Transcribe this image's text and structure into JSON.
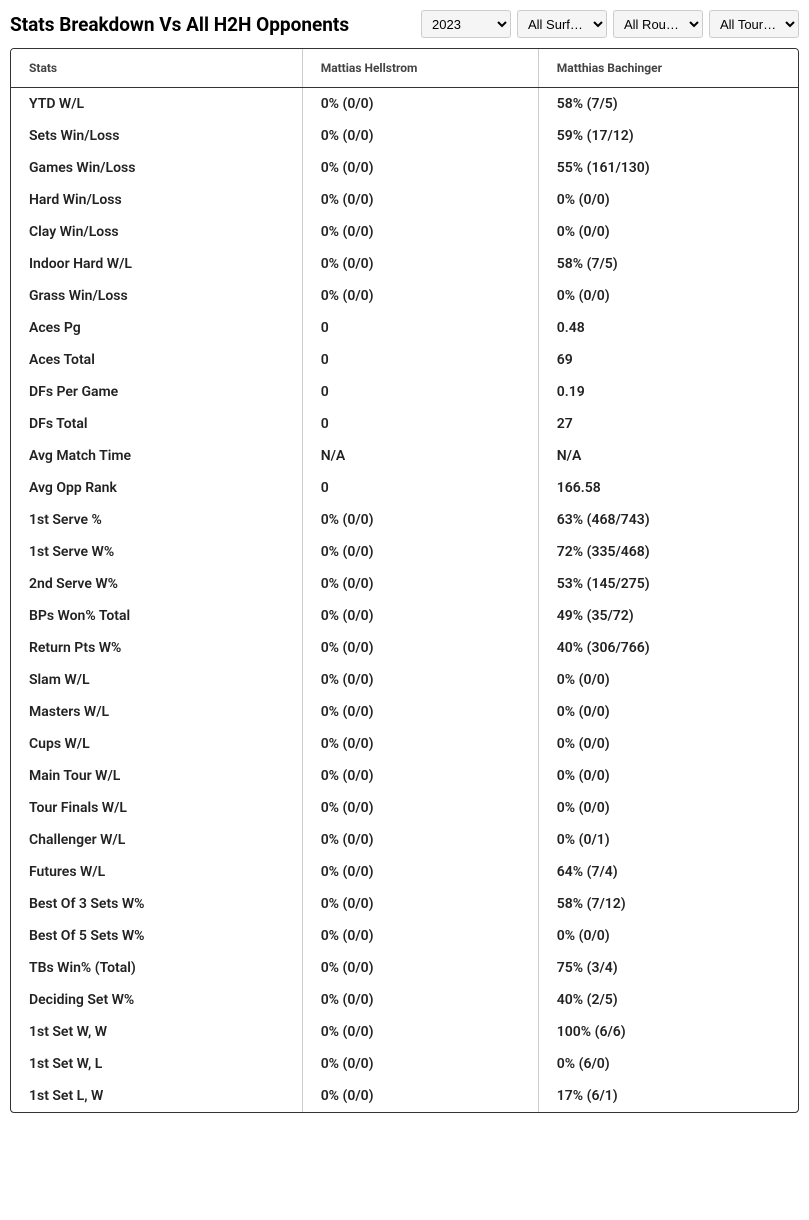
{
  "title": "Stats Breakdown Vs All H2H Opponents",
  "filters": {
    "year": "2023",
    "surface": "All Surf…",
    "round": "All Rou…",
    "tour": "All Tour…"
  },
  "table": {
    "columns": [
      "Stats",
      "Mattias Hellstrom",
      "Matthias Bachinger"
    ],
    "rows": [
      [
        "YTD W/L",
        "0% (0/0)",
        "58% (7/5)"
      ],
      [
        "Sets Win/Loss",
        "0% (0/0)",
        "59% (17/12)"
      ],
      [
        "Games Win/Loss",
        "0% (0/0)",
        "55% (161/130)"
      ],
      [
        "Hard Win/Loss",
        "0% (0/0)",
        "0% (0/0)"
      ],
      [
        "Clay Win/Loss",
        "0% (0/0)",
        "0% (0/0)"
      ],
      [
        "Indoor Hard W/L",
        "0% (0/0)",
        "58% (7/5)"
      ],
      [
        "Grass Win/Loss",
        "0% (0/0)",
        "0% (0/0)"
      ],
      [
        "Aces Pg",
        "0",
        "0.48"
      ],
      [
        "Aces Total",
        "0",
        "69"
      ],
      [
        "DFs Per Game",
        "0",
        "0.19"
      ],
      [
        "DFs Total",
        "0",
        "27"
      ],
      [
        "Avg Match Time",
        "N/A",
        "N/A"
      ],
      [
        "Avg Opp Rank",
        "0",
        "166.58"
      ],
      [
        "1st Serve %",
        "0% (0/0)",
        "63% (468/743)"
      ],
      [
        "1st Serve W%",
        "0% (0/0)",
        "72% (335/468)"
      ],
      [
        "2nd Serve W%",
        "0% (0/0)",
        "53% (145/275)"
      ],
      [
        "BPs Won% Total",
        "0% (0/0)",
        "49% (35/72)"
      ],
      [
        "Return Pts W%",
        "0% (0/0)",
        "40% (306/766)"
      ],
      [
        "Slam W/L",
        "0% (0/0)",
        "0% (0/0)"
      ],
      [
        "Masters W/L",
        "0% (0/0)",
        "0% (0/0)"
      ],
      [
        "Cups W/L",
        "0% (0/0)",
        "0% (0/0)"
      ],
      [
        "Main Tour W/L",
        "0% (0/0)",
        "0% (0/0)"
      ],
      [
        "Tour Finals W/L",
        "0% (0/0)",
        "0% (0/0)"
      ],
      [
        "Challenger W/L",
        "0% (0/0)",
        "0% (0/1)"
      ],
      [
        "Futures W/L",
        "0% (0/0)",
        "64% (7/4)"
      ],
      [
        "Best Of 3 Sets W%",
        "0% (0/0)",
        "58% (7/12)"
      ],
      [
        "Best Of 5 Sets W%",
        "0% (0/0)",
        "0% (0/0)"
      ],
      [
        "TBs Win% (Total)",
        "0% (0/0)",
        "75% (3/4)"
      ],
      [
        "Deciding Set W%",
        "0% (0/0)",
        "40% (2/5)"
      ],
      [
        "1st Set W, W",
        "0% (0/0)",
        "100% (6/6)"
      ],
      [
        "1st Set W, L",
        "0% (0/0)",
        "0% (6/0)"
      ],
      [
        "1st Set L, W",
        "0% (0/0)",
        "17% (6/1)"
      ]
    ]
  }
}
